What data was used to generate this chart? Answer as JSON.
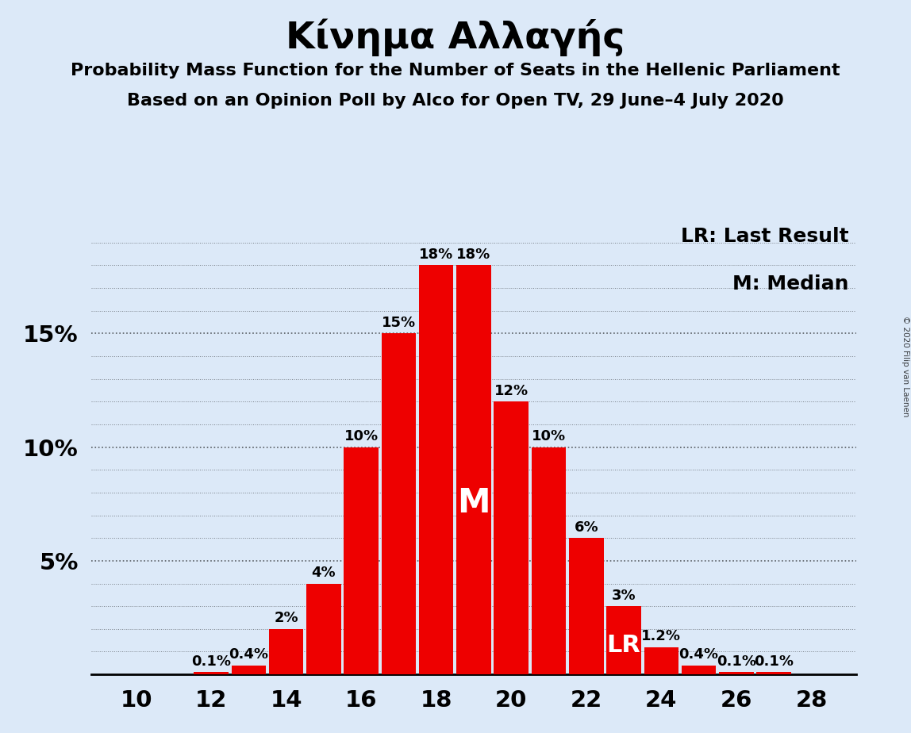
{
  "title": "Κίνημα Αλλαγής",
  "subtitle1": "Probability Mass Function for the Number of Seats in the Hellenic Parliament",
  "subtitle2": "Based on an Opinion Poll by Alco for Open TV, 29 June–4 July 2020",
  "copyright": "© 2020 Filip van Laenen",
  "legend_lr": "LR: Last Result",
  "legend_m": "M: Median",
  "seats": [
    10,
    11,
    12,
    13,
    14,
    15,
    16,
    17,
    18,
    19,
    20,
    21,
    22,
    23,
    24,
    25,
    26,
    27,
    28
  ],
  "probabilities": [
    0.0,
    0.0,
    0.1,
    0.4,
    2.0,
    4.0,
    10.0,
    15.0,
    18.0,
    18.0,
    12.0,
    10.0,
    6.0,
    3.0,
    1.2,
    0.4,
    0.1,
    0.1,
    0.0
  ],
  "bar_color": "#ee0000",
  "bg_color": "#dce9f8",
  "median_seat": 19,
  "lr_seat": 23,
  "ylim": [
    0,
    20
  ],
  "yticks": [
    0,
    5,
    10,
    15,
    20
  ],
  "ytick_labels": [
    "",
    "5%",
    "10%",
    "15%",
    ""
  ],
  "xtick_positions": [
    10,
    12,
    14,
    16,
    18,
    20,
    22,
    24,
    26,
    28
  ],
  "title_fontsize": 34,
  "subtitle_fontsize": 16,
  "axis_fontsize": 21,
  "bar_label_fontsize": 13,
  "legend_fontsize": 18,
  "m_label_fontsize": 30,
  "lr_label_fontsize": 22
}
